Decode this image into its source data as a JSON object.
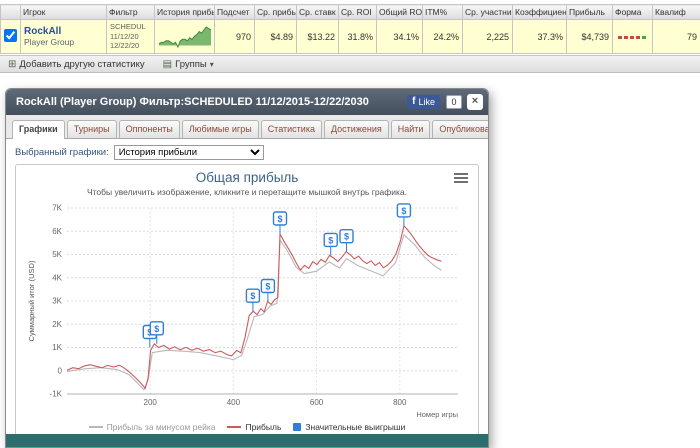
{
  "table": {
    "headers": [
      "Игрок",
      "Фильтр",
      "История прибы",
      "Подсчет",
      "Ср. прибы",
      "Ср. ставк",
      "Ср. ROI",
      "Общий ROI",
      "ITM%",
      "Ср. участни",
      "Коэффициен",
      "Прибыль",
      "Форма",
      "Квалиф"
    ],
    "row": {
      "player": "RockAll",
      "player_sub": "Player Group",
      "filter_lines": [
        "SCHEDUL",
        "11/12/20",
        "12/22/20"
      ],
      "count": "970",
      "avg_profit": "$4.89",
      "avg_stake": "$13.22",
      "avg_roi": "31.8%",
      "total_roi": "34.1%",
      "itm": "24.2%",
      "avg_entrants": "2,225",
      "ability": "37.3%",
      "profit": "$4,739",
      "qualified": "79",
      "history_sparkline": [
        1,
        2,
        2,
        3,
        3,
        2,
        1,
        2,
        -1,
        3,
        4,
        4,
        3,
        5,
        4,
        6,
        7,
        9,
        8,
        10,
        12,
        11,
        10
      ],
      "form_colors": [
        "#cc4444",
        "#cc4444",
        "#cc4444",
        "#cc4444",
        "#44aa44"
      ]
    }
  },
  "toolbar": {
    "add_stat": "Добавить другую статистику",
    "groups": "Группы"
  },
  "popup": {
    "title": "RockAll (Player Group) Фильтр:SCHEDULED 11/12/2015-12/22/2030",
    "fb_like": "Like",
    "fb_count": "0",
    "close": "×",
    "tabs": [
      "Графики",
      "Турниры",
      "Оппоненты",
      "Любимые игры",
      "Статистика",
      "Достижения",
      "Найти",
      "Опубликовать"
    ],
    "active_tab": "Графики",
    "selector_label": "Выбранный графики:",
    "selector_value": "История прибыли"
  },
  "chart_data": {
    "type": "line",
    "title": "Общая прибыль",
    "subtitle": "Чтобы увеличить изображение, кликните и перетащите мышкой внутрь графика.",
    "xlabel": "Номер игры",
    "ylabel": "Суммарный итог (USD)",
    "xlim": [
      0,
      940
    ],
    "ylim": [
      -1000,
      7000
    ],
    "xticks": [
      200,
      400,
      600,
      800
    ],
    "yticks": [
      [
        -1000,
        "-1K"
      ],
      [
        0,
        "0"
      ],
      [
        1000,
        "1K"
      ],
      [
        2000,
        "2K"
      ],
      [
        3000,
        "3K"
      ],
      [
        4000,
        "4K"
      ],
      [
        5000,
        "5K"
      ],
      [
        6000,
        "6K"
      ],
      [
        7000,
        "7K"
      ]
    ],
    "grid": true,
    "legend_position": "bottom",
    "series": [
      {
        "name": "Прибыль за минусом рейка",
        "color": "#b8b8b8",
        "points": [
          [
            0,
            -30
          ],
          [
            40,
            80
          ],
          [
            80,
            130
          ],
          [
            120,
            60
          ],
          [
            150,
            -180
          ],
          [
            185,
            -820
          ],
          [
            195,
            -380
          ],
          [
            205,
            780
          ],
          [
            240,
            880
          ],
          [
            280,
            840
          ],
          [
            320,
            780
          ],
          [
            360,
            640
          ],
          [
            400,
            480
          ],
          [
            420,
            660
          ],
          [
            432,
            1280
          ],
          [
            450,
            2330
          ],
          [
            470,
            2420
          ],
          [
            488,
            2780
          ],
          [
            505,
            2900
          ],
          [
            512,
            5620
          ],
          [
            530,
            5150
          ],
          [
            550,
            4470
          ],
          [
            570,
            4180
          ],
          [
            600,
            4280
          ],
          [
            630,
            4680
          ],
          [
            655,
            4420
          ],
          [
            672,
            4820
          ],
          [
            700,
            4520
          ],
          [
            730,
            4300
          ],
          [
            760,
            4080
          ],
          [
            790,
            4650
          ],
          [
            810,
            5850
          ],
          [
            835,
            5440
          ],
          [
            860,
            4880
          ],
          [
            880,
            4560
          ],
          [
            900,
            4320
          ]
        ]
      },
      {
        "name": "Прибыль",
        "color": "#cf5a5a",
        "points": [
          [
            0,
            20
          ],
          [
            14,
            130
          ],
          [
            28,
            90
          ],
          [
            42,
            210
          ],
          [
            56,
            260
          ],
          [
            70,
            190
          ],
          [
            84,
            130
          ],
          [
            98,
            230
          ],
          [
            112,
            160
          ],
          [
            126,
            240
          ],
          [
            138,
            110
          ],
          [
            150,
            -60
          ],
          [
            163,
            -270
          ],
          [
            176,
            -500
          ],
          [
            188,
            -760
          ],
          [
            195,
            -320
          ],
          [
            201,
            880
          ],
          [
            210,
            1160
          ],
          [
            220,
            1000
          ],
          [
            233,
            1090
          ],
          [
            246,
            930
          ],
          [
            259,
            1030
          ],
          [
            272,
            900
          ],
          [
            286,
            1010
          ],
          [
            300,
            880
          ],
          [
            314,
            970
          ],
          [
            328,
            840
          ],
          [
            342,
            910
          ],
          [
            356,
            780
          ],
          [
            370,
            840
          ],
          [
            384,
            700
          ],
          [
            396,
            640
          ],
          [
            408,
            870
          ],
          [
            418,
            770
          ],
          [
            428,
            1430
          ],
          [
            438,
            2370
          ],
          [
            448,
            2560
          ],
          [
            457,
            2410
          ],
          [
            466,
            2670
          ],
          [
            474,
            2530
          ],
          [
            482,
            2980
          ],
          [
            491,
            2860
          ],
          [
            499,
            3050
          ],
          [
            507,
            3150
          ],
          [
            512,
            5880
          ],
          [
            521,
            5590
          ],
          [
            531,
            5290
          ],
          [
            541,
            4990
          ],
          [
            551,
            4640
          ],
          [
            561,
            4330
          ],
          [
            571,
            4530
          ],
          [
            581,
            4400
          ],
          [
            591,
            4690
          ],
          [
            601,
            4570
          ],
          [
            611,
            4790
          ],
          [
            621,
            4670
          ],
          [
            631,
            4960
          ],
          [
            641,
            4850
          ],
          [
            651,
            4700
          ],
          [
            661,
            4890
          ],
          [
            671,
            5120
          ],
          [
            681,
            4990
          ],
          [
            691,
            4810
          ],
          [
            701,
            4930
          ],
          [
            711,
            4730
          ],
          [
            721,
            4610
          ],
          [
            731,
            4730
          ],
          [
            741,
            4530
          ],
          [
            751,
            4650
          ],
          [
            761,
            4430
          ],
          [
            771,
            4550
          ],
          [
            781,
            4730
          ],
          [
            791,
            5030
          ],
          [
            801,
            5550
          ],
          [
            810,
            6230
          ],
          [
            819,
            6060
          ],
          [
            828,
            5850
          ],
          [
            838,
            5590
          ],
          [
            848,
            5350
          ],
          [
            858,
            5140
          ],
          [
            868,
            4960
          ],
          [
            878,
            4860
          ],
          [
            889,
            4770
          ],
          [
            900,
            4710
          ]
        ]
      }
    ],
    "markers": {
      "name": "Значительные выигрыши",
      "color": "#2f7ed8",
      "symbol": "$",
      "points": [
        [
          199,
          1000
        ],
        [
          216,
          1160
        ],
        [
          447,
          2560
        ],
        [
          483,
          2980
        ],
        [
          512,
          5880
        ],
        [
          634,
          4960
        ],
        [
          672,
          5120
        ],
        [
          810,
          6230
        ]
      ]
    },
    "legend": [
      {
        "label": "Прибыль за минусом рейка",
        "color": "#b8b8b8",
        "type": "line",
        "text_color": "#999999"
      },
      {
        "label": "Прибыль",
        "color": "#cf5a5a",
        "type": "line",
        "text_color": "#333333"
      },
      {
        "label": "Значительные выигрыши",
        "color": "#2f7ed8",
        "type": "box",
        "text_color": "#333333"
      }
    ]
  }
}
